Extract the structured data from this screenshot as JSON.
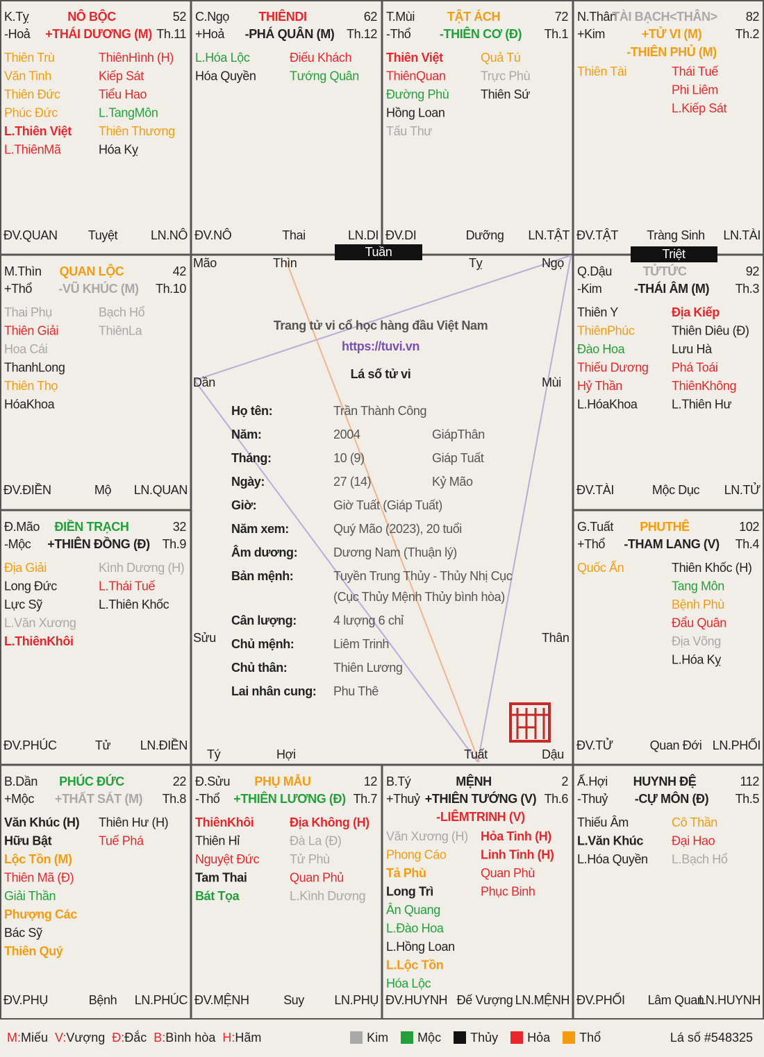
{
  "palaces": [
    {
      "branch": "K.Tỵ",
      "name": [
        "NÔ BỘC",
        "#e8262b"
      ],
      "age": "52",
      "element": "-Hoả",
      "main": [
        [
          "+THÁI DƯƠNG (M)",
          "#e8262b"
        ]
      ],
      "month": "Th.11",
      "left": [
        [
          "Thiên Trù",
          "#f39c12"
        ],
        [
          "Văn Tinh",
          "#f39c12"
        ],
        [
          "Thiên Đức",
          "#f39c12"
        ],
        [
          "Phúc Đức",
          "#f39c12"
        ],
        [
          "L.Thiên Việt",
          "#e8262b",
          true
        ],
        [
          "L.ThiênMã",
          "#e8262b"
        ]
      ],
      "right": [
        [
          "ThiênHình (H)",
          "#e8262b"
        ],
        [
          "Kiếp Sát",
          "#e8262b"
        ],
        [
          "Tiểu Hao",
          "#e8262b"
        ],
        [
          "L.TangMôn",
          "#23a03a"
        ],
        [
          "Thiên Thương",
          "#f39c12"
        ],
        [
          "Hóa Kỵ",
          "#222222"
        ]
      ],
      "bottom": [
        "ĐV.QUAN",
        "Tuyệt",
        "LN.NÔ"
      ]
    },
    {
      "branch": "C.Ngọ",
      "name": [
        "THIÊNDI",
        "#e8262b"
      ],
      "age": "62",
      "element": "+Hoả",
      "main": [
        [
          "-PHÁ QUÂN (M)",
          "#222222"
        ]
      ],
      "month": "Th.12",
      "left": [
        [
          "L.Hóa Lộc",
          "#23a03a"
        ],
        [
          "Hóa Quyền",
          "#222222"
        ]
      ],
      "right": [
        [
          "Điếu Khách",
          "#e8262b"
        ],
        [
          "Tướng Quân",
          "#23a03a"
        ]
      ],
      "bottom": [
        "ĐV.NÔ",
        "Thai",
        "LN.DI"
      ]
    },
    {
      "branch": "T.Mùi",
      "name": [
        "TẬT ÁCH",
        "#f39c12"
      ],
      "age": "72",
      "element": "-Thổ",
      "main": [
        [
          "-THIÊN CƠ (Đ)",
          "#23a03a"
        ]
      ],
      "month": "Th.1",
      "left": [
        [
          "Thiên Việt",
          "#e8262b",
          true
        ],
        [
          "ThiênQuan",
          "#e8262b"
        ],
        [
          "Đường Phù",
          "#23a03a"
        ],
        [
          "Hồng Loan",
          "#222222"
        ],
        [
          "Tấu Thư",
          "#a8a8a8"
        ]
      ],
      "right": [
        [
          "Quả Tú",
          "#f39c12"
        ],
        [
          "Trực Phù",
          "#a8a8a8"
        ],
        [
          "Thiên Sứ",
          "#222222"
        ]
      ],
      "bottom": [
        "ĐV.DI",
        "Dưỡng",
        "LN.TẬT"
      ]
    },
    {
      "branch": "N.Thân",
      "name": [
        "TÀI BẠCH<THÂN>",
        "#a8a8a8"
      ],
      "age": "82",
      "element": "+Kim",
      "main": [
        [
          "+TỬ VI (M)",
          "#f39c12"
        ],
        [
          "-THIÊN PHỦ (M)",
          "#f39c12"
        ]
      ],
      "month": "Th.2",
      "left": [
        [
          "Thiên Tài",
          "#f39c12"
        ]
      ],
      "right": [
        [
          "Thái Tuế",
          "#e8262b"
        ],
        [
          "Phi Liêm",
          "#e8262b"
        ],
        [
          "L.Kiếp Sát",
          "#e8262b"
        ]
      ],
      "bottom": [
        "ĐV.TẬT",
        "Tràng Sinh",
        "LN.TÀI"
      ]
    },
    {
      "branch": "M.Thìn",
      "name": [
        "QUAN LỘC",
        "#f39c12"
      ],
      "age": "42",
      "element": "+Thổ",
      "main": [
        [
          "-VŨ KHÚC (M)",
          "#a8a8a8"
        ]
      ],
      "month": "Th.10",
      "left": [
        [
          "Thai Phụ",
          "#a8a8a8"
        ],
        [
          "Thiên Giải",
          "#e8262b"
        ],
        [
          "Hoa Cái",
          "#a8a8a8"
        ],
        [
          "ThanhLong",
          "#222222"
        ],
        [
          "Thiên Thọ",
          "#f39c12"
        ],
        [
          "HóaKhoa",
          "#222222"
        ]
      ],
      "right": [
        [
          "Bạch Hổ",
          "#a8a8a8"
        ],
        [
          "ThiênLa",
          "#a8a8a8"
        ]
      ],
      "bottom": [
        "ĐV.ĐIỀN",
        "Mộ",
        "LN.QUAN"
      ]
    },
    {
      "branch": "Q.Dậu",
      "name": [
        "TỬTỨC",
        "#a8a8a8"
      ],
      "age": "92",
      "element": "-Kim",
      "main": [
        [
          "-THÁI ÂM (M)",
          "#222222"
        ]
      ],
      "month": "Th.3",
      "left": [
        [
          "Thiên Y",
          "#222222"
        ],
        [
          "ThiênPhúc",
          "#f39c12"
        ],
        [
          "Đào Hoa",
          "#23a03a"
        ],
        [
          "Thiếu Dương",
          "#e8262b"
        ],
        [
          "Hỷ Thần",
          "#e8262b"
        ],
        [
          "L.HóaKhoa",
          "#222222"
        ]
      ],
      "right": [
        [
          "Địa Kiếp",
          "#e8262b",
          true
        ],
        [
          "Thiên Diêu (Đ)",
          "#222222"
        ],
        [
          "Lưu Hà",
          "#222222"
        ],
        [
          "Phá Toái",
          "#e8262b"
        ],
        [
          "ThiênKhông",
          "#e8262b"
        ],
        [
          "L.Thiên Hư",
          "#222222"
        ]
      ],
      "bottom": [
        "ĐV.TÀI",
        "Mộc Dục",
        "LN.TỬ"
      ]
    },
    {
      "branch": "Đ.Mão",
      "name": [
        "ĐIỀN TRẠCH",
        "#23a03a"
      ],
      "age": "32",
      "element": "-Mộc",
      "main": [
        [
          "+THIÊN ĐỒNG (Đ)",
          "#222222"
        ]
      ],
      "month": "Th.9",
      "left": [
        [
          "Địa Giải",
          "#f39c12"
        ],
        [
          "Long Đức",
          "#222222"
        ],
        [
          "Lực Sỹ",
          "#222222"
        ],
        [
          "L.Văn Xương",
          "#a8a8a8"
        ],
        [
          "L.ThiênKhôi",
          "#e8262b",
          true
        ]
      ],
      "right": [
        [
          "Kình Dương (H)",
          "#a8a8a8"
        ],
        [
          "L.Thái Tuế",
          "#e8262b"
        ],
        [
          "L.Thiên Khốc",
          "#222222"
        ]
      ],
      "bottom": [
        "ĐV.PHÚC",
        "Tử",
        "LN.ĐIỀN"
      ]
    },
    {
      "branch": "G.Tuất",
      "name": [
        "PHUTHÊ",
        "#f39c12"
      ],
      "age": "102",
      "element": "+Thổ",
      "main": [
        [
          "-THAM LANG (V)",
          "#222222"
        ]
      ],
      "month": "Th.4",
      "left": [
        [
          "Quốc Ấn",
          "#f39c12"
        ]
      ],
      "right": [
        [
          "Thiên Khốc (H)",
          "#222222"
        ],
        [
          "Tang Môn",
          "#23a03a"
        ],
        [
          "Bệnh Phù",
          "#f39c12"
        ],
        [
          "Đẩu Quân",
          "#e8262b"
        ],
        [
          "Địa Võng",
          "#a8a8a8"
        ],
        [
          "L.Hóa Kỵ",
          "#222222"
        ]
      ],
      "bottom": [
        "ĐV.TỬ",
        "Quan Đới",
        "LN.PHỐI"
      ]
    },
    {
      "branch": "B.Dần",
      "name": [
        "PHÚC ĐỨC",
        "#23a03a"
      ],
      "age": "22",
      "element": "+Mộc",
      "main": [
        [
          "+THẤT SÁT (M)",
          "#a8a8a8"
        ]
      ],
      "month": "Th.8",
      "left": [
        [
          "Văn Khúc (H)",
          "#222222",
          true
        ],
        [
          "Hữu Bật",
          "#222222",
          true
        ],
        [
          "Lộc Tồn (M)",
          "#f39c12",
          true
        ],
        [
          "Thiên Mã (Đ)",
          "#e8262b"
        ],
        [
          "Giải Thần",
          "#23a03a"
        ],
        [
          "Phượng Các",
          "#f39c12",
          true
        ],
        [
          "Bác Sỹ",
          "#222222"
        ],
        [
          "Thiên Quý",
          "#f39c12",
          true
        ]
      ],
      "right": [
        [
          "Thiên Hư (H)",
          "#222222"
        ],
        [
          "Tuế Phá",
          "#e8262b"
        ]
      ],
      "bottom": [
        "ĐV.PHỤ",
        "Bệnh",
        "LN.PHÚC"
      ]
    },
    {
      "branch": "Đ.Sửu",
      "name": [
        "PHỤ MẪU",
        "#f39c12"
      ],
      "age": "12",
      "element": "-Thổ",
      "main": [
        [
          "+THIÊN LƯƠNG (Đ)",
          "#23a03a"
        ]
      ],
      "month": "Th.7",
      "left": [
        [
          "ThiênKhôi",
          "#e8262b",
          true
        ],
        [
          "Thiên Hỉ",
          "#222222"
        ],
        [
          "Nguyệt Đức",
          "#e8262b"
        ],
        [
          "Tam Thai",
          "#222222",
          true
        ],
        [
          "Bát Tọa",
          "#23a03a",
          true
        ]
      ],
      "right": [
        [
          "Địa Không (H)",
          "#e8262b",
          true
        ],
        [
          "Đà La (Đ)",
          "#a8a8a8"
        ],
        [
          "Tử Phù",
          "#a8a8a8"
        ],
        [
          "Quan Phủ",
          "#e8262b"
        ],
        [
          "L.Kình Dương",
          "#a8a8a8"
        ]
      ],
      "bottom": [
        "ĐV.MỆNH",
        "Suy",
        "LN.PHỤ"
      ]
    },
    {
      "branch": "B.Tý",
      "name": [
        "MỆNH",
        "#222222"
      ],
      "age": "2",
      "element": "+Thuỷ",
      "main": [
        [
          "+THIÊN TƯỚNG (V)",
          "#222222"
        ],
        [
          "-LIÊMTRINH (V)",
          "#e8262b"
        ]
      ],
      "month": "Th.6",
      "left": [
        [
          "Văn Xương (H)",
          "#a8a8a8"
        ],
        [
          "Phong Cáo",
          "#f39c12"
        ],
        [
          "Tả Phù",
          "#f39c12",
          true
        ],
        [
          "Long Trì",
          "#222222",
          true
        ],
        [
          "Ân Quang",
          "#23a03a"
        ],
        [
          "L.Đào Hoa",
          "#23a03a"
        ],
        [
          "L.Hồng Loan",
          "#222222"
        ],
        [
          "L.Lộc Tồn",
          "#f39c12",
          true
        ],
        [
          "Hóa Lộc",
          "#23a03a"
        ]
      ],
      "right": [
        [
          "Hỏa Tinh (H)",
          "#e8262b",
          true
        ],
        [
          "Linh Tinh (H)",
          "#e8262b",
          true
        ],
        [
          "Quan Phù",
          "#e8262b"
        ],
        [
          "Phục Binh",
          "#e8262b"
        ]
      ],
      "bottom": [
        "ĐV.HUYNH",
        "Đế Vượng",
        "LN.MỆNH"
      ]
    },
    {
      "branch": "Ấ.Hợi",
      "name": [
        "HUYNH ĐỆ",
        "#222222"
      ],
      "age": "112",
      "element": "-Thuỷ",
      "main": [
        [
          "-CỰ MÔN (Đ)",
          "#222222"
        ]
      ],
      "month": "Th.5",
      "left": [
        [
          "Thiếu Âm",
          "#222222"
        ],
        [
          "L.Văn Khúc",
          "#222222",
          true
        ],
        [
          "L.Hóa Quyền",
          "#222222"
        ]
      ],
      "right": [
        [
          "Cô Thần",
          "#f39c12"
        ],
        [
          "Đại Hao",
          "#e8262b"
        ],
        [
          "L.Bạch Hổ",
          "#a8a8a8"
        ]
      ],
      "bottom": [
        "ĐV.PHỐI",
        "Lâm Quan",
        "LN.HUYNH"
      ]
    }
  ],
  "center": {
    "branches": [
      "Mão",
      "Thìn",
      "Tỵ",
      "Ngọ",
      "Dần",
      "Mùi",
      "Sửu",
      "Thân",
      "Tý",
      "Hợi",
      "Tuất",
      "Dậu"
    ],
    "tuan": "Tuần",
    "triet": "Triệt",
    "slogan": "Trang tử vi cổ học hàng đầu Việt Nam",
    "url": "https://tuvi.vn",
    "title": "Lá số tử vi",
    "rows": [
      {
        "label": "Họ tên:",
        "value": "Trần Thành Công"
      },
      {
        "label": "Năm:",
        "value": "2004",
        "extra": "GiápThân"
      },
      {
        "label": "Tháng:",
        "value": "10 (9)",
        "extra": "Giáp Tuất"
      },
      {
        "label": "Ngày:",
        "value": "27 (14)",
        "extra": "Kỷ Mão"
      },
      {
        "label": "Giờ:",
        "value": "Giờ Tuất (Giáp Tuất)"
      },
      {
        "label": "Năm xem:",
        "value": "Quý Mão (2023), 20 tuổi"
      },
      {
        "label": "Âm dương:",
        "value": "Dương Nam (Thuận lý)"
      },
      {
        "label": "Bản mệnh:",
        "value": "Tuyền Trung Thủy - Thủy Nhị Cục",
        "cont": "(Cục Thủy Mệnh Thủy bình hòa)"
      },
      {
        "label": "Cân lượng:",
        "value": "4 lượng 6 chỉ"
      },
      {
        "label": "Chủ mệnh:",
        "value": "Liêm Trinh"
      },
      {
        "label": "Chủ thân:",
        "value": "Thiên Lương"
      },
      {
        "label": "Lai nhân cung:",
        "value": "Phu Thê"
      }
    ]
  },
  "footer": {
    "keys": [
      [
        "M:",
        "Miếu"
      ],
      [
        "V:",
        "Vượng"
      ],
      [
        "Đ:",
        "Đắc"
      ],
      [
        "B:",
        "Bình hòa"
      ],
      [
        "H:",
        "Hãm"
      ]
    ],
    "legend": [
      [
        "Kim",
        "#a8a8a8"
      ],
      [
        "Mộc",
        "#23a03a"
      ],
      [
        "Thủy",
        "#111111"
      ],
      [
        "Hỏa",
        "#e8262b"
      ],
      [
        "Thổ",
        "#f39c12"
      ]
    ],
    "id": "Lá số #548325"
  }
}
